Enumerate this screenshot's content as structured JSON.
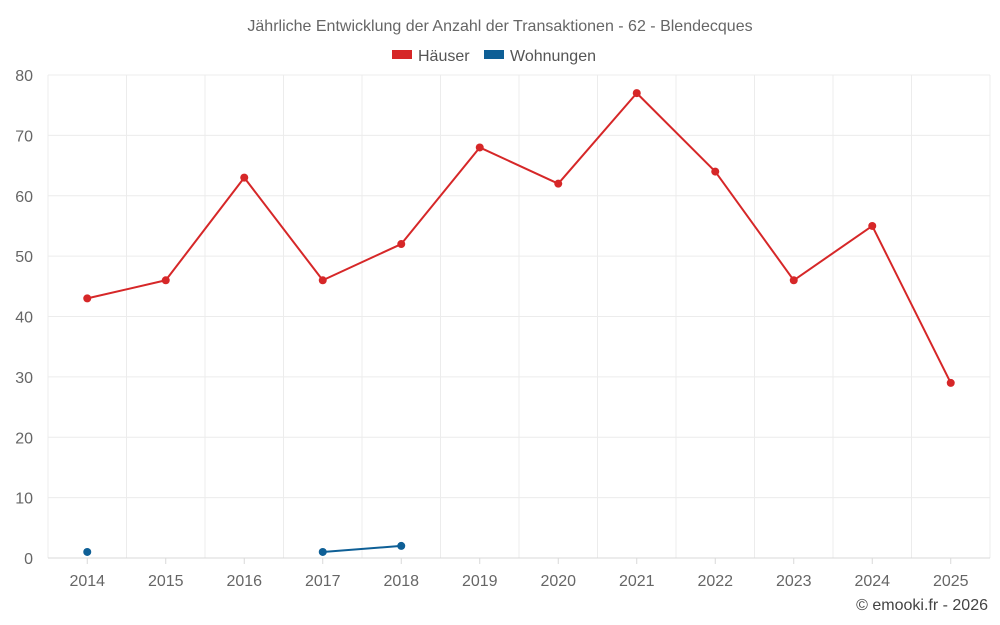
{
  "chart_data": {
    "type": "line",
    "title": "Jährliche Entwicklung der Anzahl der Transaktionen - 62 - Blendecques",
    "x": [
      "2014",
      "2015",
      "2016",
      "2017",
      "2018",
      "2019",
      "2020",
      "2021",
      "2022",
      "2023",
      "2024",
      "2025"
    ],
    "series": [
      {
        "name": "Häuser",
        "color": "#d62728",
        "values": [
          43,
          46,
          63,
          46,
          52,
          68,
          62,
          77,
          64,
          46,
          55,
          29
        ]
      },
      {
        "name": "Wohnungen",
        "color": "#0e5f96",
        "values": [
          1,
          null,
          null,
          1,
          2,
          null,
          null,
          null,
          null,
          null,
          null,
          null
        ]
      }
    ],
    "ylim": [
      0,
      80
    ],
    "yticks": [
      0,
      10,
      20,
      30,
      40,
      50,
      60,
      70,
      80
    ],
    "grid": true,
    "legend_position": "top-center"
  },
  "footer": {
    "credit": "© emooki.fr - 2026"
  }
}
